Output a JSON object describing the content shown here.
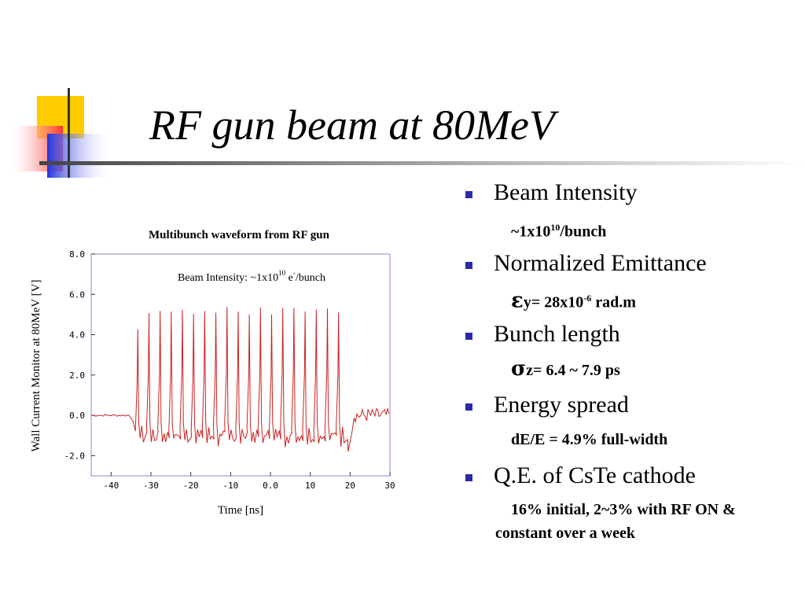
{
  "slide": {
    "title": "RF gun beam at 80MeV",
    "colors": {
      "yellow": "#ffcc00",
      "red": "#ff3333",
      "blue": "#2233dd",
      "rule": "#555555"
    }
  },
  "bullets": [
    {
      "head": "Beam Intensity"
    },
    {
      "head": "Normalized Emittance"
    },
    {
      "head": "Bunch length"
    },
    {
      "head": "Energy spread"
    },
    {
      "head": "Q.E. of CsTe cathode"
    }
  ],
  "values": {
    "intensity_pre": "~1x10",
    "intensity_exp": "10",
    "intensity_post": "/bunch",
    "emit_sym": "ε",
    "emit_pre": "y= 28x10",
    "emit_exp": "-6",
    "emit_post": " rad.m",
    "bunch_sym": "σ",
    "bunch_text": "z= 6.4 ~ 7.9 ps",
    "energy_text": "dE/E = 4.9% full-width",
    "qe_text": "16% initial, 2~3% with RF ON & constant over a week"
  },
  "chart_data": {
    "type": "line",
    "title": "Multibunch waveform from RF gun",
    "xlabel": "Time [ns]",
    "ylabel": "Wall Current Monitor at 80MeV [V]",
    "annotation": {
      "pre": "Beam Intensity: ~1x10",
      "exp1": "10",
      "mid": " e",
      "exp2": "-",
      "post": "/bunch"
    },
    "xlim": [
      -45,
      30
    ],
    "ylim": [
      -3.0,
      8.0
    ],
    "xticks": [
      -40,
      -30,
      -20,
      -10,
      0,
      10,
      20,
      30
    ],
    "xtick_labels": [
      "-40",
      "-30",
      "-20",
      "-10",
      "0.0",
      "10",
      "20",
      "30"
    ],
    "yticks": [
      -2,
      0,
      2,
      4,
      6,
      8
    ],
    "ytick_labels": [
      "-2.0",
      "0.0",
      "2.0",
      "4.0",
      "6.0",
      "8.0"
    ],
    "grid": false,
    "color": "#cc2222",
    "baseline_level": 0.0,
    "baseline_end": -35,
    "pulse_start": -34.5,
    "pulse_end": 19.0,
    "bunch_spacing": 2.8,
    "bunch_peak": 5.2,
    "inter_bunch_min": -1.6,
    "tail_level": 0.0
  }
}
